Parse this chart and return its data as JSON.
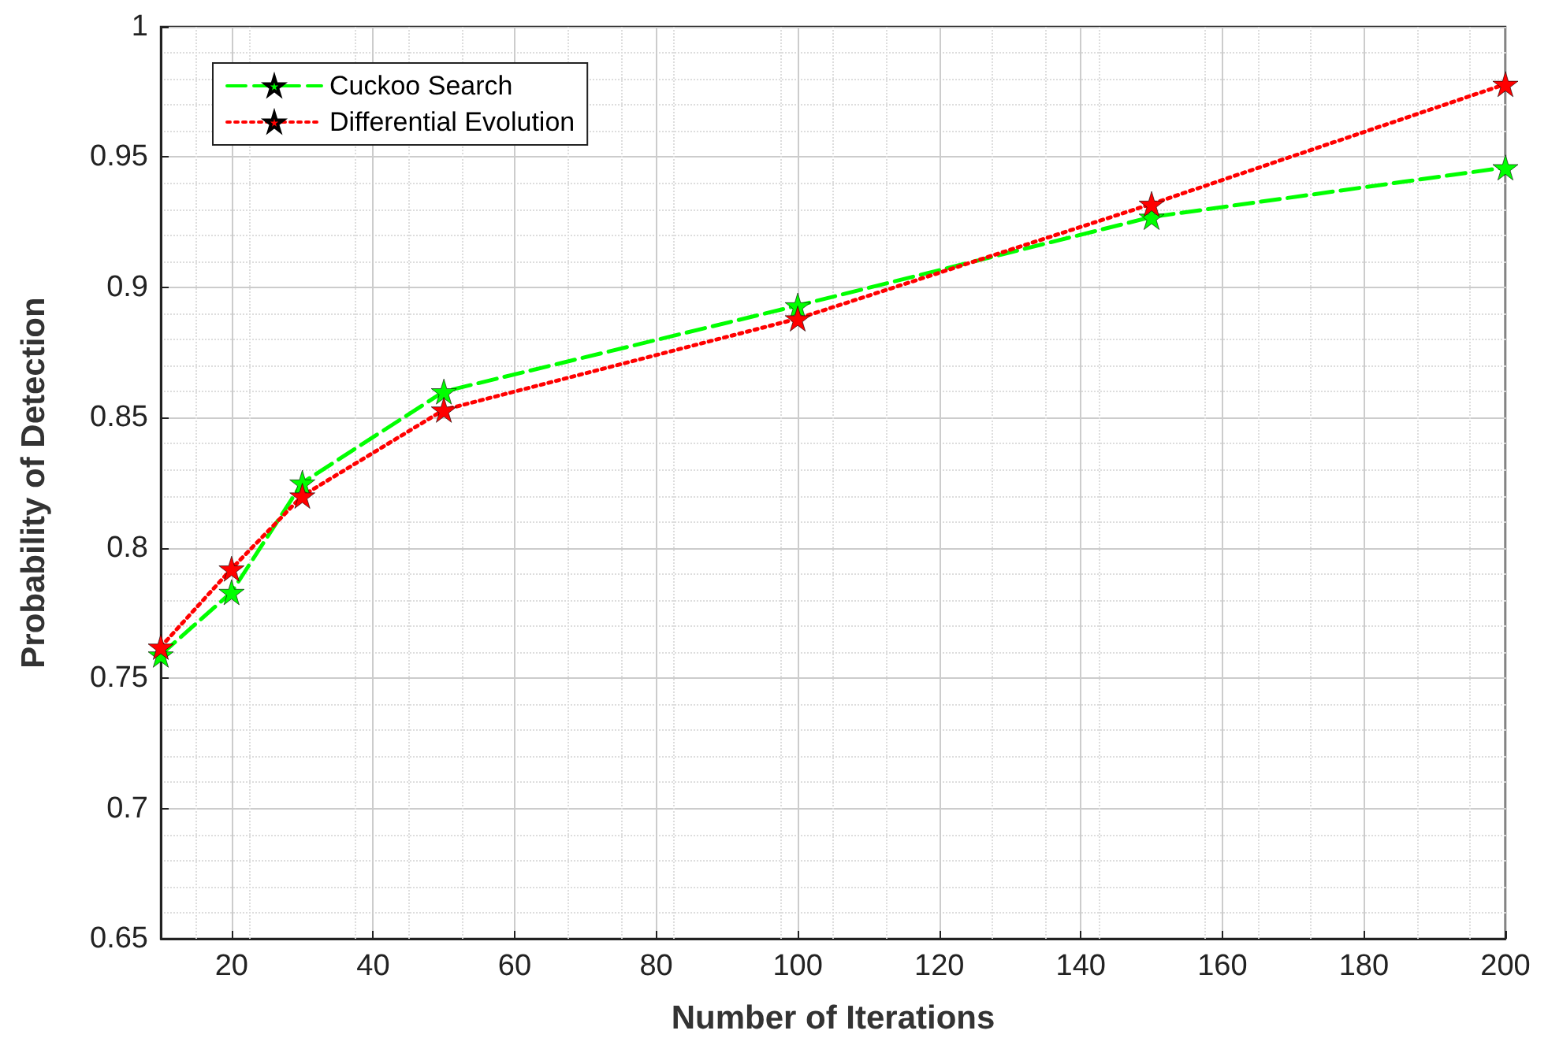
{
  "chart_data": {
    "type": "line",
    "xlabel": "Number of Iterations",
    "ylabel": "Probability of Detection",
    "x": [
      10,
      20,
      30,
      50,
      100,
      150,
      200
    ],
    "series": [
      {
        "name": "Cuckoo Search",
        "color": "#00ff00",
        "line_style": "dashed",
        "marker": "star",
        "values": [
          0.759,
          0.783,
          0.825,
          0.86,
          0.893,
          0.927,
          0.946
        ]
      },
      {
        "name": "Differential Evolution",
        "color": "#ff0000",
        "line_style": "dotted",
        "marker": "star",
        "values": [
          0.762,
          0.792,
          0.82,
          0.853,
          0.888,
          0.932,
          0.978
        ]
      }
    ],
    "xlim": [
      10,
      200
    ],
    "xticks": [
      20,
      40,
      60,
      80,
      100,
      120,
      140,
      160,
      180,
      200
    ],
    "ylim": [
      0.65,
      1
    ],
    "yticks": [
      0.65,
      0.7,
      0.75,
      0.8,
      0.85,
      0.9,
      0.95,
      1
    ],
    "grid": true,
    "legend": "top left"
  }
}
